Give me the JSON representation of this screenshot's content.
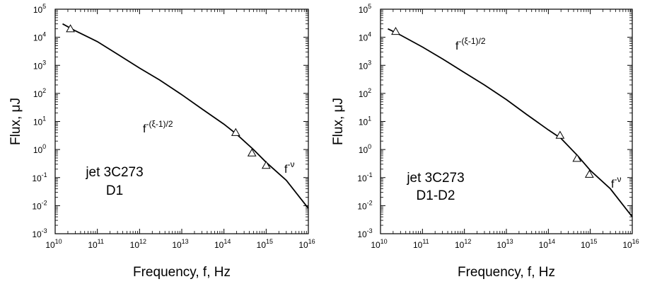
{
  "chart_data": [
    {
      "type": "line",
      "xlabel": "Frequency, f, Hz",
      "ylabel": "Flux, μJ",
      "xscale": "log",
      "yscale": "log",
      "xlim": [
        10000000000.0,
        1e+16
      ],
      "ylim": [
        0.001,
        100000
      ],
      "x_tick_exponents": [
        10,
        11,
        12,
        13,
        14,
        15,
        16
      ],
      "y_tick_exponents": [
        -3,
        -2,
        -1,
        0,
        1,
        2,
        3,
        4,
        5
      ],
      "tick_base": "10",
      "annotations": {
        "low_slope": {
          "base": "f",
          "exponent": "-(ξ-1)/2"
        },
        "high_slope": {
          "base": "f",
          "exponent": "-ν"
        }
      },
      "source_label": [
        "jet 3C273",
        "D1"
      ],
      "series": [
        {
          "type": "line",
          "x": [
            15000000000.0,
            30000000000.0,
            100000000000.0,
            300000000000.0,
            1000000000000.0,
            3000000000000.0,
            10000000000000.0,
            30000000000000.0,
            100000000000000.0,
            200000000000000.0,
            500000000000000.0,
            1000000000000000.0,
            3000000000000000.0,
            1e+16
          ],
          "y": [
            30000,
            17000,
            7000,
            2500,
            800,
            300,
            90,
            28,
            8,
            3.5,
            1.0,
            0.35,
            0.08,
            0.008
          ]
        },
        {
          "type": "scatter",
          "marker": "triangle",
          "x": [
            23000000000.0,
            190000000000000.0,
            460000000000000.0,
            1000000000000000.0
          ],
          "y": [
            20000,
            4.0,
            0.75,
            0.27
          ]
        }
      ]
    },
    {
      "type": "line",
      "xlabel": "Frequency, f, Hz",
      "ylabel": "Flux, μJ",
      "xscale": "log",
      "yscale": "log",
      "xlim": [
        10000000000.0,
        1e+16
      ],
      "ylim": [
        0.001,
        100000
      ],
      "x_tick_exponents": [
        10,
        11,
        12,
        13,
        14,
        15,
        16
      ],
      "y_tick_exponents": [
        -3,
        -2,
        -1,
        0,
        1,
        2,
        3,
        4,
        5
      ],
      "tick_base": "10",
      "annotations": {
        "low_slope": {
          "base": "f",
          "exponent": "-(ξ-1)/2"
        },
        "high_slope": {
          "base": "f",
          "exponent": "-ν"
        }
      },
      "source_label": [
        "jet 3C273",
        "D1-D2"
      ],
      "series": [
        {
          "type": "line",
          "x": [
            15000000000.0,
            30000000000.0,
            100000000000.0,
            300000000000.0,
            1000000000000.0,
            3000000000000.0,
            10000000000000.0,
            30000000000000.0,
            100000000000000.0,
            200000000000000.0,
            500000000000000.0,
            1000000000000000.0,
            3000000000000000.0,
            1e+16
          ],
          "y": [
            20000,
            12000,
            4500,
            1700,
            550,
            200,
            60,
            18,
            5,
            2.5,
            0.6,
            0.18,
            0.04,
            0.004
          ]
        },
        {
          "type": "scatter",
          "marker": "triangle",
          "x": [
            23000000000.0,
            190000000000000.0,
            480000000000000.0,
            950000000000000.0
          ],
          "y": [
            16000,
            3.2,
            0.48,
            0.13
          ]
        }
      ]
    }
  ]
}
